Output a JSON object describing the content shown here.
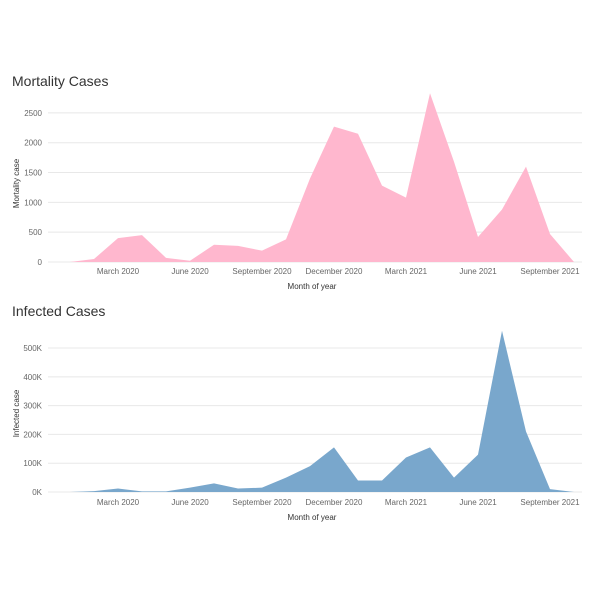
{
  "chart_data": [
    {
      "type": "area",
      "title": "Mortality Cases",
      "xlabel": "Month of year",
      "ylabel": "Mortality case",
      "color": "#ffb7ce",
      "ylim": [
        0,
        2800
      ],
      "y_ticks": [
        0,
        500,
        1000,
        1500,
        2000,
        2500
      ],
      "y_tick_labels": [
        "0",
        "500",
        "1000",
        "1500",
        "2000",
        "2500"
      ],
      "x_tick_labels": [
        {
          "label": "March 2020",
          "index": 2
        },
        {
          "label": "June 2020",
          "index": 5
        },
        {
          "label": "September 2020",
          "index": 8
        },
        {
          "label": "December 2020",
          "index": 11
        },
        {
          "label": "March 2021",
          "index": 14
        },
        {
          "label": "June 2021",
          "index": 17
        },
        {
          "label": "September 2021",
          "index": 20
        }
      ],
      "categories": [
        "Jan 2020",
        "Feb 2020",
        "Mar 2020",
        "Apr 2020",
        "May 2020",
        "Jun 2020",
        "Jul 2020",
        "Aug 2020",
        "Sep 2020",
        "Oct 2020",
        "Nov 2020",
        "Dec 2020",
        "Jan 2021",
        "Feb 2021",
        "Mar 2021",
        "Apr 2021",
        "May 2021",
        "Jun 2021",
        "Jul 2021",
        "Aug 2021",
        "Sep 2021",
        "Oct 2021"
      ],
      "values": [
        0,
        50,
        400,
        450,
        70,
        20,
        290,
        270,
        190,
        380,
        1400,
        2270,
        2150,
        1280,
        1080,
        2830,
        1680,
        420,
        880,
        1600,
        470,
        0
      ]
    },
    {
      "type": "area",
      "title": "Infected Cases",
      "xlabel": "Month of year",
      "ylabel": "Infected case",
      "color": "#79a7cc",
      "ylim": [
        0,
        580000
      ],
      "y_ticks": [
        0,
        100000,
        200000,
        300000,
        400000,
        500000
      ],
      "y_tick_labels": [
        "0K",
        "100K",
        "200K",
        "300K",
        "400K",
        "500K"
      ],
      "x_tick_labels": [
        {
          "label": "March 2020",
          "index": 2
        },
        {
          "label": "June 2020",
          "index": 5
        },
        {
          "label": "September 2020",
          "index": 8
        },
        {
          "label": "December 2020",
          "index": 11
        },
        {
          "label": "March 2021",
          "index": 14
        },
        {
          "label": "June 2021",
          "index": 17
        },
        {
          "label": "September 2021",
          "index": 20
        }
      ],
      "categories": [
        "Jan 2020",
        "Feb 2020",
        "Mar 2020",
        "Apr 2020",
        "May 2020",
        "Jun 2020",
        "Jul 2020",
        "Aug 2020",
        "Sep 2020",
        "Oct 2020",
        "Nov 2020",
        "Dec 2020",
        "Jan 2021",
        "Feb 2021",
        "Mar 2021",
        "Apr 2021",
        "May 2021",
        "Jun 2021",
        "Jul 2021",
        "Aug 2021",
        "Sep 2021",
        "Oct 2021"
      ],
      "values": [
        0,
        3000,
        12000,
        2000,
        2000,
        15000,
        30000,
        12000,
        15000,
        50000,
        90000,
        155000,
        40000,
        40000,
        120000,
        155000,
        50000,
        130000,
        560000,
        210000,
        10000,
        0
      ]
    }
  ]
}
